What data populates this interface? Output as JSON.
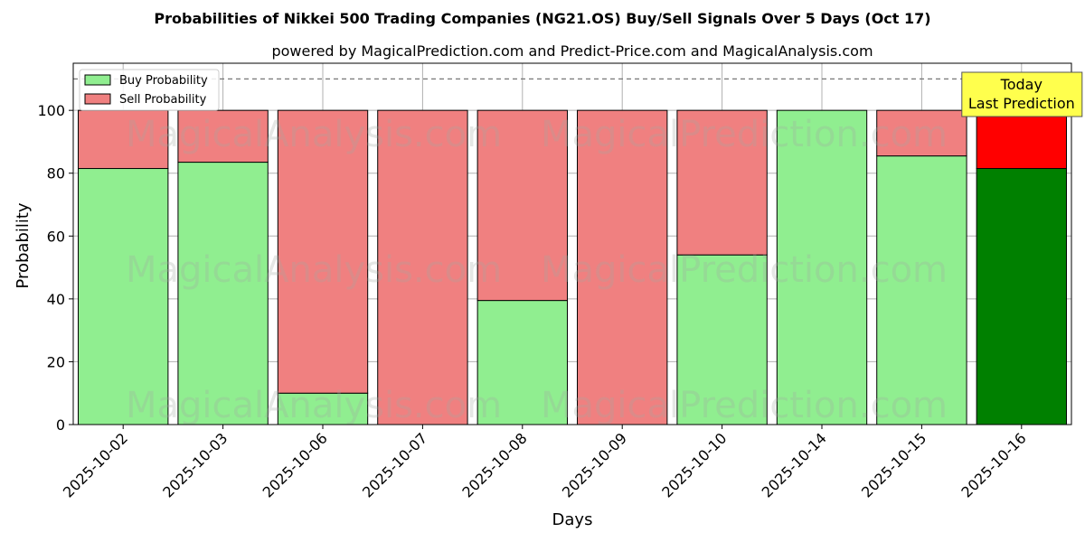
{
  "chart_data": {
    "type": "bar",
    "stacked": true,
    "title": "Probabilities of Nikkei 500 Trading Companies (NG21.OS) Buy/Sell Signals Over 5 Days (Oct 17)",
    "subtitle": "powered by MagicalPrediction.com and Predict-Price.com and MagicalAnalysis.com",
    "xlabel": "Days",
    "ylabel": "Probability",
    "ylim": [
      0,
      115
    ],
    "yticks": [
      0,
      20,
      40,
      60,
      80,
      100
    ],
    "grid": true,
    "legend_position": "top-left",
    "reference_line": 110,
    "categories": [
      "2025-10-02",
      "2025-10-03",
      "2025-10-06",
      "2025-10-07",
      "2025-10-08",
      "2025-10-09",
      "2025-10-10",
      "2025-10-14",
      "2025-10-15",
      "2025-10-16"
    ],
    "series": [
      {
        "name": "Buy Probability",
        "color": "#90ee90",
        "highlight_color": "#008000",
        "values": [
          81.5,
          83.5,
          10,
          0,
          39.5,
          0,
          54,
          100,
          85.5,
          81.5
        ]
      },
      {
        "name": "Sell Probability",
        "color": "#f08080",
        "highlight_color": "#ff0000",
        "values": [
          18.5,
          16.5,
          90,
          100,
          60.5,
          100,
          46,
          0,
          14.5,
          18.5
        ]
      }
    ],
    "annotation": {
      "lines": [
        "Today",
        "Last Prediction"
      ],
      "color": "#ffff4d"
    },
    "watermarks": [
      "MagicalAnalysis.com",
      "MagicalPrediction.com"
    ]
  }
}
